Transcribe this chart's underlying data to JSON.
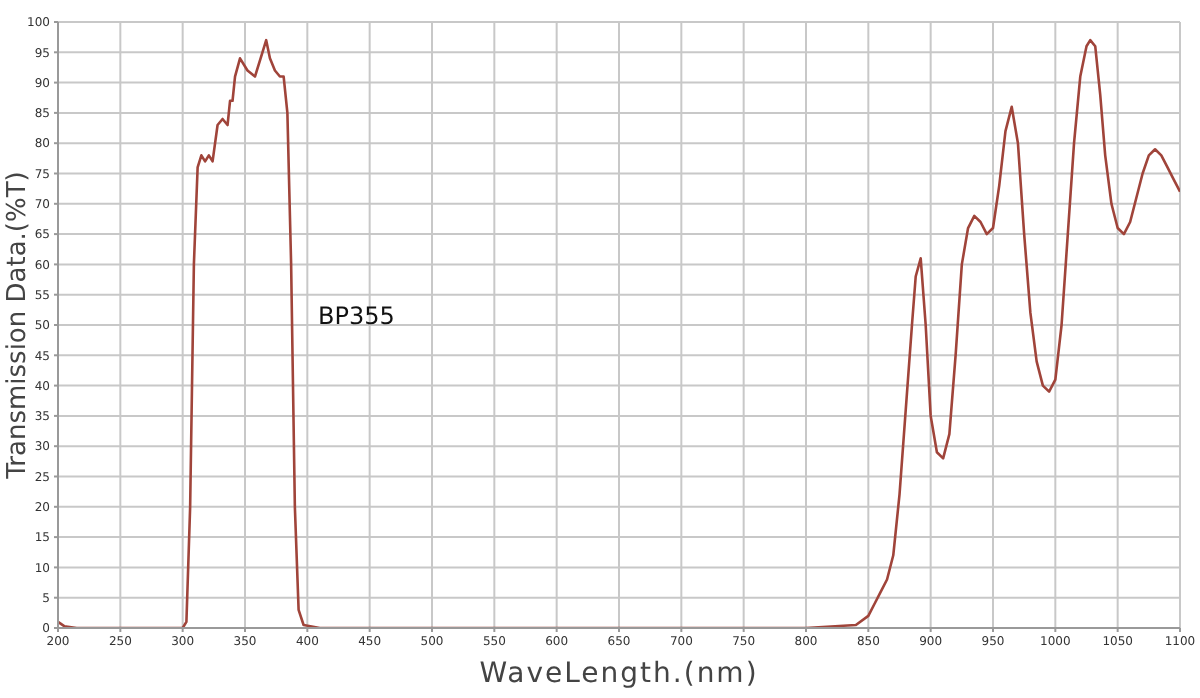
{
  "chart_data": {
    "type": "line",
    "xlabel": "WaveLength.(nm)",
    "ylabel": "Transmission Data.(%T)",
    "xlim": [
      200,
      1100
    ],
    "xticks": [
      200,
      250,
      300,
      350,
      400,
      450,
      500,
      550,
      600,
      650,
      700,
      750,
      800,
      850,
      900,
      950,
      1000,
      1050,
      1100
    ],
    "ylim": [
      0,
      100
    ],
    "yticks": [
      0,
      5,
      10,
      15,
      20,
      25,
      30,
      35,
      40,
      45,
      50,
      55,
      60,
      65,
      70,
      75,
      80,
      85,
      90,
      95,
      100
    ],
    "grid": true,
    "legend": false,
    "marker": "none",
    "line_style": "solid",
    "annotations": [
      "BP355"
    ],
    "series": [
      {
        "color": "#a0443a",
        "x": [
          200,
          205,
          215,
          250,
          300,
          303,
          306,
          309,
          312,
          315,
          318,
          321,
          324,
          328,
          332,
          336,
          338,
          340,
          342,
          346,
          352,
          358,
          364,
          367,
          370,
          374,
          378,
          381,
          384,
          387,
          390,
          393,
          397,
          410,
          500,
          600,
          700,
          800,
          840,
          850,
          855,
          860,
          865,
          870,
          875,
          880,
          885,
          888,
          892,
          896,
          900,
          905,
          910,
          915,
          920,
          925,
          930,
          935,
          940,
          945,
          950,
          955,
          960,
          965,
          970,
          975,
          980,
          985,
          990,
          995,
          1000,
          1005,
          1010,
          1015,
          1020,
          1025,
          1028,
          1032,
          1036,
          1040,
          1045,
          1050,
          1055,
          1060,
          1065,
          1070,
          1075,
          1080,
          1085,
          1090,
          1095,
          1100
        ],
        "values": [
          1,
          0.3,
          0,
          0,
          0,
          1,
          20,
          60,
          76,
          78,
          77,
          78,
          77,
          83,
          84,
          83,
          87,
          87,
          91,
          94,
          92,
          91,
          95,
          97,
          94,
          92,
          91,
          91,
          85,
          60,
          20,
          3,
          0.5,
          0,
          0,
          0,
          0,
          0,
          0.5,
          2,
          4,
          6,
          8,
          12,
          22,
          36,
          50,
          58,
          61,
          50,
          35,
          29,
          28,
          32,
          45,
          60,
          66,
          68,
          67,
          65,
          66,
          73,
          82,
          86,
          80,
          65,
          52,
          44,
          40,
          39,
          41,
          50,
          65,
          80,
          91,
          96,
          97,
          96,
          88,
          78,
          70,
          66,
          65,
          67,
          71,
          75,
          78,
          79,
          78,
          76,
          74,
          72
        ]
      }
    ]
  }
}
